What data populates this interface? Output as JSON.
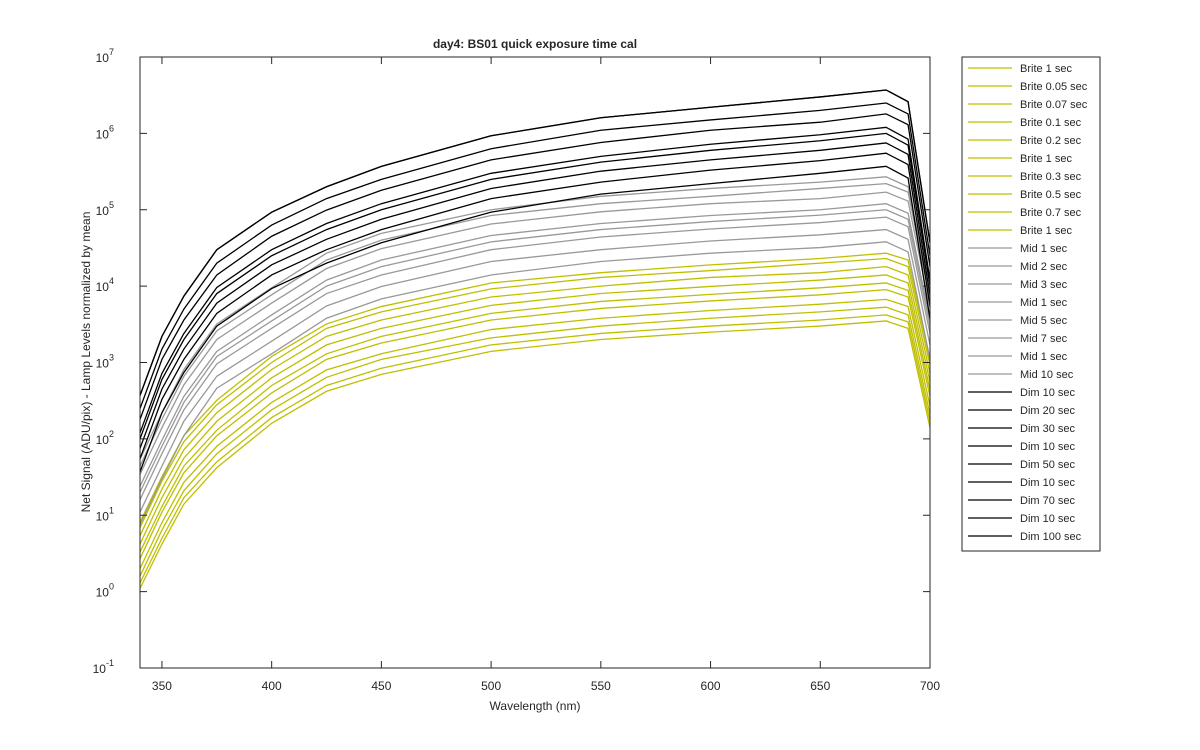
{
  "chart_data": {
    "type": "line",
    "title": "day4: BS01  quick exposure time cal",
    "x_label": "Wavelength (nm)",
    "y_label": "Net Signal (ADU/pix) - Lamp Levels normalized by mean",
    "y_scale": "log",
    "xlim": [
      340,
      700
    ],
    "xticks": [
      350,
      400,
      450,
      500,
      550,
      600,
      650,
      700
    ],
    "ylim": [
      0.1,
      10000000
    ],
    "yticks": [
      {
        "value": 0.1,
        "label": "10",
        "exponent": "-1"
      },
      {
        "value": 1,
        "label": "10",
        "exponent": "0"
      },
      {
        "value": 10,
        "label": "10",
        "exponent": "1"
      },
      {
        "value": 100,
        "label": "10",
        "exponent": "2"
      },
      {
        "value": 1000,
        "label": "10",
        "exponent": "3"
      },
      {
        "value": 10000,
        "label": "10",
        "exponent": "4"
      },
      {
        "value": 100000,
        "label": "10",
        "exponent": "5"
      },
      {
        "value": 1000000,
        "label": "10",
        "exponent": "6"
      },
      {
        "value": 10000000,
        "label": "10",
        "exponent": "7"
      }
    ],
    "legend": "outside-upper-right",
    "x": [
      340,
      350,
      360,
      375,
      400,
      425,
      450,
      500,
      550,
      600,
      650,
      680,
      690,
      700
    ],
    "series": [
      {
        "name": "Brite 1 sec",
        "color": "#bfbf00",
        "values": [
          1.1,
          4.2,
          14,
          42,
          160,
          420,
          700,
          1400,
          2000,
          2500,
          3000,
          3500,
          2800,
          140
        ]
      },
      {
        "name": "Brite 0.05 sec",
        "color": "#bfbf00",
        "values": [
          1.3,
          5,
          17,
          50,
          190,
          500,
          840,
          1700,
          2400,
          3000,
          3600,
          4200,
          3400,
          170
        ]
      },
      {
        "name": "Brite 0.07 sec",
        "color": "#bfbf00",
        "values": [
          1.6,
          6.4,
          21,
          64,
          240,
          640,
          1100,
          2100,
          3000,
          3800,
          4600,
          5300,
          4200,
          210
        ]
      },
      {
        "name": "Brite 0.1 sec",
        "color": "#bfbf00",
        "values": [
          2,
          8,
          27,
          80,
          300,
          800,
          1300,
          2700,
          3800,
          4800,
          5800,
          6700,
          5400,
          270
        ]
      },
      {
        "name": "Brite 0.2 sec",
        "color": "#bfbf00",
        "values": [
          2.7,
          11,
          36,
          110,
          400,
          1100,
          1800,
          3600,
          5100,
          6400,
          7700,
          9000,
          7200,
          360
        ]
      },
      {
        "name": "Brite 1 sec",
        "color": "#bfbf00",
        "values": [
          3.3,
          13,
          44,
          130,
          500,
          1300,
          2200,
          4400,
          6300,
          7800,
          9500,
          11000,
          8800,
          440
        ]
      },
      {
        "name": "Brite 0.3 sec",
        "color": "#bfbf00",
        "values": [
          4.2,
          17,
          56,
          170,
          630,
          1700,
          2800,
          5600,
          8000,
          9900,
          12000,
          14000,
          11000,
          560
        ]
      },
      {
        "name": "Brite 0.5 sec",
        "color": "#bfbf00",
        "values": [
          5.4,
          22,
          72,
          220,
          810,
          2200,
          3600,
          7200,
          10000,
          13000,
          15000,
          18000,
          14000,
          720
        ]
      },
      {
        "name": "Brite 0.7 sec",
        "color": "#bfbf00",
        "values": [
          6.9,
          28,
          92,
          280,
          1000,
          2800,
          4600,
          9200,
          13000,
          16000,
          20000,
          23000,
          18000,
          920
        ]
      },
      {
        "name": "Brite 1 sec",
        "color": "#bfbf00",
        "values": [
          8.1,
          32,
          110,
          320,
          1200,
          3200,
          5400,
          11000,
          15000,
          19000,
          23000,
          27000,
          22000,
          1100
        ]
      },
      {
        "name": "Mid 1 sec",
        "color": "#999999",
        "values": [
          7.6,
          30,
          110,
          460,
          1300,
          3800,
          6800,
          14000,
          21000,
          27000,
          32000,
          38000,
          28000,
          1100
        ]
      },
      {
        "name": "Mid 2 sec",
        "color": "#999999",
        "values": [
          11,
          44,
          170,
          660,
          1900,
          5500,
          9900,
          21000,
          30000,
          39000,
          47000,
          55000,
          41000,
          1700
        ]
      },
      {
        "name": "Mid 3 sec",
        "color": "#999999",
        "values": [
          16,
          64,
          240,
          960,
          2800,
          8000,
          14000,
          30000,
          44000,
          56000,
          68000,
          80000,
          60000,
          2400
        ]
      },
      {
        "name": "Mid 1 sec",
        "color": "#999999",
        "values": [
          20,
          80,
          300,
          1200,
          3500,
          10000,
          18000,
          38000,
          55000,
          70000,
          85000,
          100000,
          75000,
          3000
        ]
      },
      {
        "name": "Mid 5 sec",
        "color": "#999999",
        "values": [
          24,
          96,
          360,
          1400,
          4200,
          12000,
          22000,
          46000,
          66000,
          84000,
          100000,
          120000,
          90000,
          3600
        ]
      },
      {
        "name": "Mid 7 sec",
        "color": "#999999",
        "values": [
          34,
          140,
          510,
          2000,
          6000,
          17000,
          31000,
          65000,
          94000,
          120000,
          140000,
          170000,
          130000,
          5100
        ]
      },
      {
        "name": "Mid 1 sec",
        "color": "#999999",
        "values": [
          44,
          180,
          660,
          2600,
          7700,
          22000,
          40000,
          84000,
          120000,
          150000,
          190000,
          220000,
          170000,
          6600
        ]
      },
      {
        "name": "Mid 10 sec",
        "color": "#999999",
        "values": [
          54,
          220,
          810,
          3200,
          9500,
          27000,
          49000,
          100000,
          150000,
          190000,
          230000,
          270000,
          200000,
          8100
        ]
      },
      {
        "name": "Dim 10 sec",
        "color": "#000000",
        "values": [
          37,
          220,
          740,
          3000,
          9300,
          20000,
          37000,
          93000,
          160000,
          220000,
          300000,
          370000,
          260000,
          3700
        ]
      },
      {
        "name": "Dim 20 sec",
        "color": "#000000",
        "values": [
          55,
          330,
          1100,
          4400,
          14000,
          30000,
          55000,
          140000,
          230000,
          330000,
          440000,
          550000,
          390000,
          5500
        ]
      },
      {
        "name": "Dim 30 sec",
        "color": "#000000",
        "values": [
          75,
          450,
          1500,
          6000,
          19000,
          41000,
          75000,
          190000,
          320000,
          450000,
          600000,
          750000,
          530000,
          7500
        ]
      },
      {
        "name": "Dim 10 sec",
        "color": "#000000",
        "values": [
          100,
          600,
          2000,
          8000,
          25000,
          55000,
          100000,
          250000,
          420000,
          600000,
          800000,
          1000000,
          700000,
          10000
        ]
      },
      {
        "name": "Dim 50 sec",
        "color": "#000000",
        "values": [
          120,
          720,
          2400,
          9600,
          30000,
          66000,
          120000,
          300000,
          500000,
          720000,
          960000,
          1200000,
          840000,
          12000
        ]
      },
      {
        "name": "Dim 10 sec",
        "color": "#000000",
        "values": [
          180,
          1100,
          3600,
          14000,
          45000,
          99000,
          180000,
          450000,
          760000,
          1100000,
          1400000,
          1800000,
          1300000,
          18000
        ]
      },
      {
        "name": "Dim 70 sec",
        "color": "#000000",
        "values": [
          250,
          1500,
          5000,
          20000,
          63000,
          140000,
          250000,
          630000,
          1100000,
          1500000,
          2000000,
          2500000,
          1800000,
          25000
        ]
      },
      {
        "name": "Dim 10 sec",
        "color": "#000000",
        "values": [
          370,
          2200,
          7400,
          30000,
          93000,
          200000,
          370000,
          930000,
          1600000,
          2200000,
          3000000,
          3700000,
          2600000,
          37000
        ]
      },
      {
        "name": "Dim 100 sec",
        "color": "#000000",
        "values": [
          370,
          2200,
          7400,
          30000,
          93000,
          200000,
          370000,
          930000,
          1600000,
          2200000,
          3000000,
          3700000,
          2600000,
          37000
        ]
      }
    ]
  }
}
